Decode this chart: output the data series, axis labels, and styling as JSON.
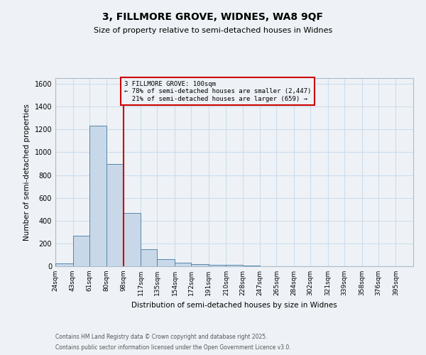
{
  "title_line1": "3, FILLMORE GROVE, WIDNES, WA8 9QF",
  "title_line2": "Size of property relative to semi-detached houses in Widnes",
  "xlabel": "Distribution of semi-detached houses by size in Widnes",
  "ylabel": "Number of semi-detached properties",
  "bin_labels": [
    "24sqm",
    "43sqm",
    "61sqm",
    "80sqm",
    "98sqm",
    "117sqm",
    "135sqm",
    "154sqm",
    "172sqm",
    "191sqm",
    "210sqm",
    "228sqm",
    "247sqm",
    "265sqm",
    "284sqm",
    "302sqm",
    "321sqm",
    "339sqm",
    "358sqm",
    "376sqm",
    "395sqm"
  ],
  "bin_edges": [
    24,
    43,
    61,
    80,
    98,
    117,
    135,
    154,
    172,
    191,
    210,
    228,
    247,
    265,
    284,
    302,
    321,
    339,
    358,
    376,
    395
  ],
  "bar_heights": [
    28,
    265,
    1230,
    895,
    470,
    150,
    65,
    30,
    18,
    10,
    10,
    8,
    0,
    0,
    0,
    0,
    0,
    0,
    0,
    0
  ],
  "bar_color": "#c8d8e8",
  "bar_edgecolor": "#5588aa",
  "grid_color": "#ccddee",
  "property_line_x": 98,
  "property_label": "3 FILLMORE GROVE: 100sqm",
  "smaller_pct": "78%",
  "smaller_count": "2,447",
  "larger_pct": "21%",
  "larger_count": "659",
  "ylim": [
    0,
    1650
  ],
  "yticks": [
    0,
    200,
    400,
    600,
    800,
    1000,
    1200,
    1400,
    1600
  ],
  "annotation_box_color": "#cc0000",
  "footnote1": "Contains HM Land Registry data © Crown copyright and database right 2025.",
  "footnote2": "Contains public sector information licensed under the Open Government Licence v3.0.",
  "background_color": "#eef2f6"
}
